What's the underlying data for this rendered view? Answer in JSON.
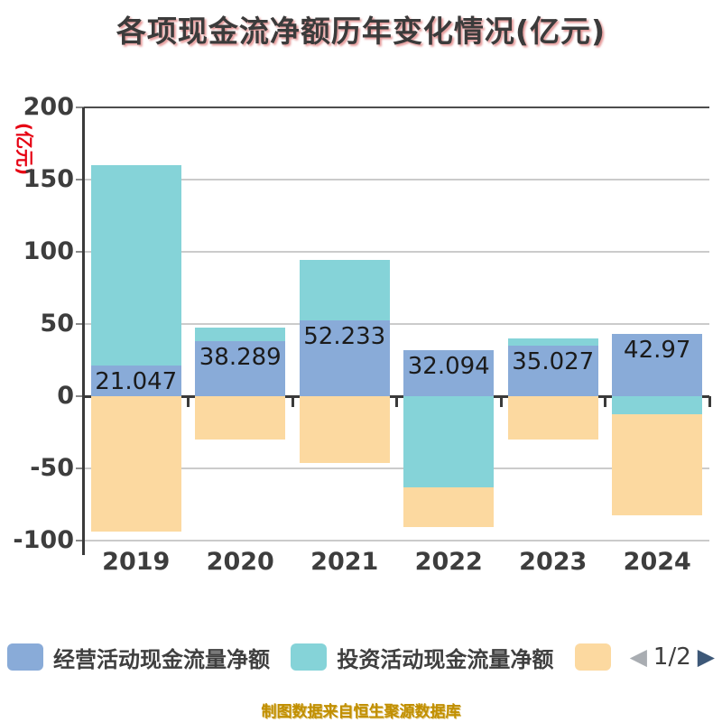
{
  "title": "各项现金流净额历年变化情况(亿元)",
  "y_axis_unit": "(亿元)",
  "footer": "制图数据来自恒生聚源数据库",
  "legend": {
    "items": [
      {
        "label": "经营活动现金流量净额",
        "color": "#89abd8"
      },
      {
        "label": "投资活动现金流量净额",
        "color": "#85d3d8"
      },
      {
        "label": "",
        "color": "#fcd9a0"
      }
    ],
    "pagination": {
      "prev_icon": "◀",
      "label": "1/2",
      "next_icon": "▶",
      "prev_color": "#a9adb2",
      "next_color": "#3d5878"
    }
  },
  "chart_data": {
    "type": "bar",
    "stacked": true,
    "title": "各项现金流净额历年变化情况(亿元)",
    "categories": [
      "2019",
      "2020",
      "2021",
      "2022",
      "2023",
      "2024"
    ],
    "series": [
      {
        "name": "经营活动现金流量净额",
        "color": "#89abd8",
        "values": [
          21.047,
          38.289,
          52.233,
          32.094,
          35.027,
          42.97
        ],
        "data_labels": [
          "21.047",
          "38.289",
          "52.233",
          "32.094",
          "35.027",
          "42.97"
        ]
      },
      {
        "name": "投资活动现金流量净额",
        "color": "#85d3d8",
        "values": [
          138.95,
          9.2,
          42.0,
          -63.1,
          5.0,
          -12.2
        ],
        "values_estimated_from_pixels": true
      },
      {
        "name": "",
        "color": "#fcd9a0",
        "values": [
          -93.7,
          -30.0,
          -46.3,
          -27.5,
          -30.0,
          -70.3
        ],
        "values_estimated_from_pixels": true
      }
    ],
    "ylim": [
      -100,
      200
    ],
    "y_ticks": [
      200,
      150,
      100,
      50,
      0,
      -50,
      -100
    ],
    "grid": true,
    "legend_position": "bottom",
    "colors": {
      "grid_light": "#cbcbcb",
      "grid_dark": "#4d4d4d",
      "zero_line": "#3a3a3a",
      "axis_text": "#3d3d3d",
      "value_label": "#1b1b1b",
      "unit_text": "#e60012",
      "footer_text": "#c18f00"
    }
  }
}
